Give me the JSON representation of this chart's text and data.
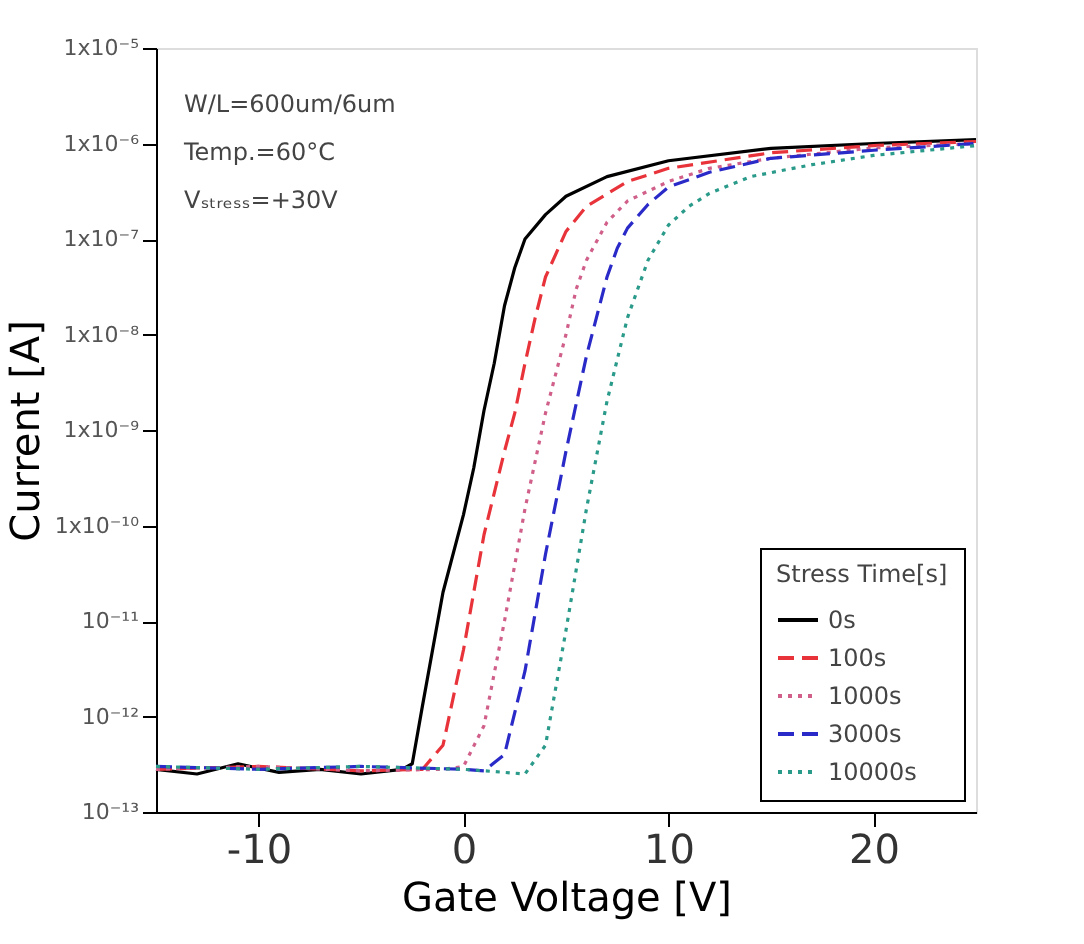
{
  "chart_data": {
    "type": "line",
    "xlabel": "Gate Voltage [V]",
    "ylabel": "Current [A]",
    "legend_title": "Stress Time[s]",
    "legend": "bottom right",
    "grid": false,
    "log": "y",
    "xlim": [
      -15,
      25
    ],
    "xticks": [
      -10,
      0,
      10,
      20
    ],
    "ylim": [
      1e-13,
      1e-05
    ],
    "yticks": [
      {
        "value": 1e-13,
        "label": "10⁻¹³"
      },
      {
        "value": 1e-12,
        "label": "10⁻¹²"
      },
      {
        "value": 1e-11,
        "label": "10⁻¹¹"
      },
      {
        "value": 1e-10,
        "label": "1x10⁻¹⁰"
      },
      {
        "value": 1e-09,
        "label": "1x10⁻⁹"
      },
      {
        "value": 1e-08,
        "label": "1x10⁻⁸"
      },
      {
        "value": 1e-07,
        "label": "1x10⁻⁷"
      },
      {
        "value": 1e-06,
        "label": "1x10⁻⁶"
      },
      {
        "value": 1e-05,
        "label": "1x10⁻⁵"
      }
    ],
    "annotations": [
      "W/L=600um/6um",
      "Temp.=60°C",
      "Vₛₜᵣₑₛₛ=+30V"
    ],
    "series": [
      {
        "name": "0s",
        "color": "#000000",
        "line_style": "solid",
        "x": [
          -15,
          -13,
          -11,
          -9,
          -7,
          -5,
          -3,
          -2.5,
          -2,
          -1,
          0,
          0.5,
          1,
          1.5,
          2,
          2.5,
          3,
          4,
          5,
          7,
          10,
          15,
          20,
          25
        ],
        "values": [
          2.8e-13,
          2.5e-13,
          3.2e-13,
          2.6e-13,
          2.8e-13,
          2.5e-13,
          2.8e-13,
          3.2e-13,
          1.3e-12,
          2e-11,
          1.3e-10,
          4e-10,
          1.6e-09,
          5e-09,
          2e-08,
          5e-08,
          1e-07,
          1.8e-07,
          2.8e-07,
          4.5e-07,
          6.6e-07,
          8.9e-07,
          1e-06,
          1.1e-06
        ]
      },
      {
        "name": "100s",
        "color": "#e8333a",
        "line_style": "dashed",
        "x": [
          -15,
          -10,
          -5,
          -2,
          -1,
          0,
          1,
          2,
          2.5,
          3,
          3.5,
          4,
          5,
          6,
          8,
          10,
          15,
          20,
          25
        ],
        "values": [
          2.8e-13,
          3e-13,
          2.7e-13,
          2.8e-13,
          5e-13,
          5e-12,
          8e-11,
          6e-10,
          1.5e-09,
          5e-09,
          1.5e-08,
          4e-08,
          1.2e-07,
          2.2e-07,
          4e-07,
          5.5e-07,
          8e-07,
          9.5e-07,
          1.05e-06
        ]
      },
      {
        "name": "1000s",
        "color": "#d0608a",
        "line_style": "dotted",
        "x": [
          -15,
          -10,
          -5,
          -1,
          0,
          1,
          2,
          3,
          4,
          5,
          5.5,
          6,
          7,
          8,
          10,
          12,
          15,
          20,
          25
        ],
        "values": [
          2.8e-13,
          3e-13,
          2.7e-13,
          2.8e-13,
          3e-13,
          8e-13,
          1e-11,
          1.5e-10,
          1.5e-09,
          1e-08,
          3e-08,
          6e-08,
          1.5e-07,
          2.5e-07,
          4e-07,
          5.5e-07,
          7e-07,
          9e-07,
          1e-06
        ]
      },
      {
        "name": "3000s",
        "color": "#2a2ac8",
        "line_style": "dashed",
        "x": [
          -15,
          -10,
          -5,
          0,
          1,
          2,
          3,
          4,
          5,
          6,
          7,
          7.5,
          8,
          9,
          10,
          12,
          15,
          20,
          25
        ],
        "values": [
          3e-13,
          2.8e-13,
          3e-13,
          2.8e-13,
          2.7e-13,
          4e-13,
          3e-12,
          5e-11,
          6e-10,
          6e-09,
          4e-08,
          8e-08,
          1.3e-07,
          2.3e-07,
          3.5e-07,
          5e-07,
          7e-07,
          8.5e-07,
          1e-06
        ]
      },
      {
        "name": "10000s",
        "color": "#2a9a8a",
        "line_style": "dotted",
        "x": [
          -15,
          -10,
          -5,
          0,
          2,
          3,
          4,
          5,
          6,
          7,
          8,
          9,
          10,
          11,
          12,
          14,
          17,
          20,
          25
        ],
        "values": [
          3e-13,
          2.8e-13,
          3e-13,
          2.8e-13,
          2.6e-13,
          2.5e-13,
          5e-13,
          8e-12,
          1.5e-10,
          2e-09,
          1.5e-08,
          6e-08,
          1.4e-07,
          2.2e-07,
          3e-07,
          4.5e-07,
          6e-07,
          7.5e-07,
          9.5e-07
        ]
      }
    ]
  }
}
